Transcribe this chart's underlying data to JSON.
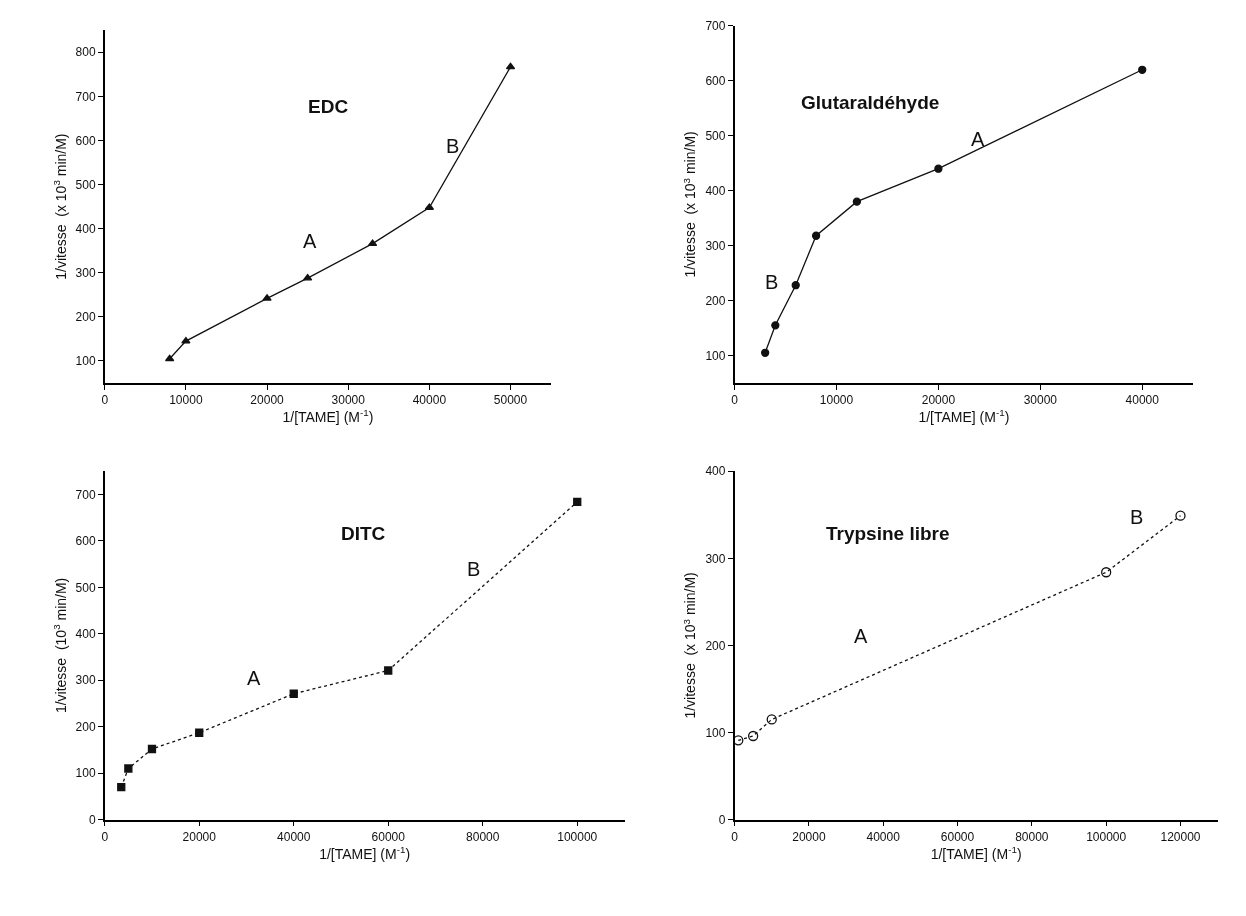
{
  "chart_data": [
    {
      "type": "line",
      "title": "EDC",
      "xlabel": "1/[TAME] (M$^{-1}$)",
      "ylabel": "1/vitesse  (x 10$^{3}$ min/M)",
      "marker": "triangle",
      "line_style": "solid",
      "x": [
        8000,
        10000,
        20000,
        25000,
        33000,
        40000,
        50000
      ],
      "series": [
        {
          "color": "#111111",
          "values": [
            105,
            145,
            242,
            288,
            366,
            448,
            767
          ]
        }
      ],
      "xlim": [
        0,
        55000
      ],
      "xticks": [
        0,
        10000,
        20000,
        30000,
        40000,
        50000
      ],
      "ylim": [
        50,
        850
      ],
      "yticks": [
        100,
        200,
        300,
        400,
        500,
        600,
        700,
        800
      ],
      "annotations": [
        "A",
        "B"
      ]
    },
    {
      "type": "line",
      "title": "Glutaraldéhyde",
      "xlabel": "1/[TAME] (M$^{-1}$)",
      "ylabel": "1/vitesse  (x 10$^{3}$ min/M)",
      "marker": "circle",
      "line_style": "solid",
      "x": [
        3000,
        4000,
        6000,
        8000,
        12000,
        20000,
        40000
      ],
      "series": [
        {
          "color": "#111111",
          "values": [
            105,
            155,
            228,
            318,
            380,
            440,
            620
          ]
        }
      ],
      "xlim": [
        0,
        45000
      ],
      "xticks": [
        0,
        10000,
        20000,
        30000,
        40000
      ],
      "ylim": [
        50,
        700
      ],
      "yticks": [
        100,
        200,
        300,
        400,
        500,
        600,
        700
      ],
      "annotations": [
        "A",
        "B"
      ]
    },
    {
      "type": "line",
      "title": "DITC",
      "xlabel": "1/[TAME] (M$^{-1}$)",
      "ylabel": "1/vitesse  (10$^{3}$ min/M)",
      "marker": "square",
      "line_style": "dotted",
      "x": [
        3500,
        5000,
        10000,
        20000,
        40000,
        60000,
        100000
      ],
      "series": [
        {
          "color": "#111111",
          "values": [
            70,
            110,
            152,
            187,
            271,
            321,
            684
          ]
        }
      ],
      "xlim": [
        0,
        110000
      ],
      "xticks": [
        0,
        20000,
        40000,
        60000,
        80000,
        100000
      ],
      "ylim": [
        0,
        750
      ],
      "yticks": [
        0,
        100,
        200,
        300,
        400,
        500,
        600,
        700
      ],
      "annotations": [
        "A",
        "B"
      ]
    },
    {
      "type": "line",
      "title": "Trypsine libre",
      "xlabel": "1/[TAME] (M$^{-1}$)",
      "ylabel": "1/vitesse  (x 10$^{3}$ min/M)",
      "marker": "circle-open",
      "line_style": "dotted",
      "x": [
        1000,
        5000,
        10000,
        100000,
        120000
      ],
      "series": [
        {
          "color": "#111111",
          "values": [
            91,
            96,
            115,
            284,
            349
          ]
        }
      ],
      "xlim": [
        0,
        130000
      ],
      "xticks": [
        0,
        20000,
        40000,
        60000,
        80000,
        100000,
        120000
      ],
      "ylim": [
        0,
        400
      ],
      "yticks": [
        0,
        100,
        200,
        300,
        400
      ],
      "annotations": [
        "A",
        "B"
      ]
    }
  ]
}
